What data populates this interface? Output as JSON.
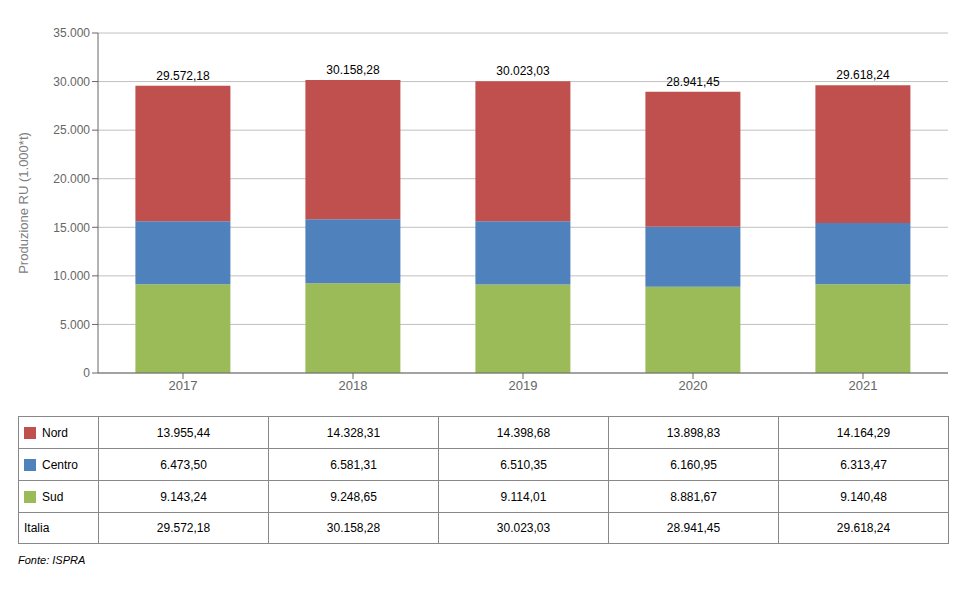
{
  "chart_data": {
    "type": "bar",
    "stacked": true,
    "grid": true,
    "categories": [
      "2017",
      "2018",
      "2019",
      "2020",
      "2021"
    ],
    "ylabel": "Produzione RU (1.000*t)",
    "ylim": [
      0,
      35000
    ],
    "yticks": [
      0,
      {
        "value": 5000,
        "label": "5.000"
      },
      {
        "value": 10000,
        "label": "10.000"
      },
      {
        "value": 15000,
        "label": "15.000"
      },
      {
        "value": 20000,
        "label": "20.000"
      },
      {
        "value": 25000,
        "label": "25.000"
      },
      {
        "value": 30000,
        "label": "30.000"
      },
      {
        "value": 35000,
        "label": "35.000"
      }
    ],
    "series": [
      {
        "name": "Sud",
        "color": "#9bbb59",
        "values": [
          9143.24,
          9248.65,
          9114.01,
          8881.67,
          9140.48
        ],
        "value_labels": [
          "9.143,24",
          "9.248,65",
          "9.114,01",
          "8.881,67",
          "9.140,48"
        ]
      },
      {
        "name": "Centro",
        "color": "#4f81bd",
        "values": [
          6473.5,
          6581.31,
          6510.35,
          6160.95,
          6313.47
        ],
        "value_labels": [
          "6.473,50",
          "6.581,31",
          "6.510,35",
          "6.160,95",
          "6.313,47"
        ]
      },
      {
        "name": "Nord",
        "color": "#c0504d",
        "values": [
          13955.44,
          14328.31,
          14398.68,
          13898.83,
          14164.29
        ],
        "value_labels": [
          "13.955,44",
          "14.328,31",
          "14.398,68",
          "13.898,83",
          "14.164,29"
        ]
      }
    ],
    "totals": {
      "name": "Italia",
      "values": [
        29572.18,
        30158.28,
        30023.03,
        28941.45,
        29618.24
      ],
      "value_labels": [
        "29.572,18",
        "30.158,28",
        "30.023,03",
        "28.941,45",
        "29.618,24"
      ]
    },
    "annotation": "Fonte: ISPRA"
  }
}
